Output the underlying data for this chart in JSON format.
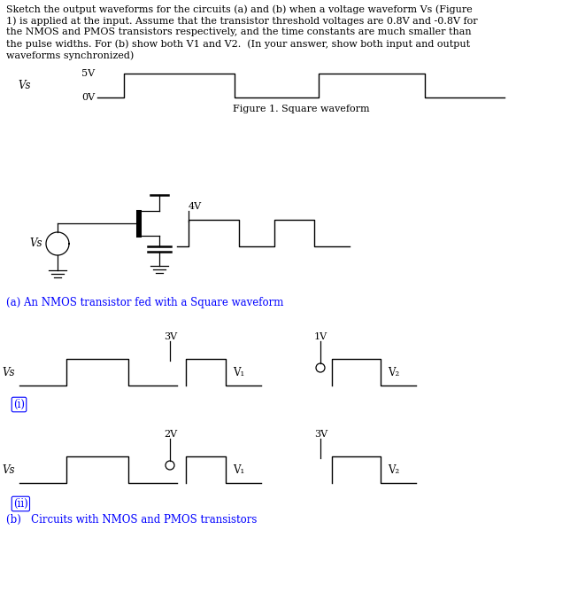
{
  "blue_color": "#0000FF",
  "black_color": "#000000",
  "bg_color": "#FFFFFF",
  "fs_body": 8.5,
  "fs_small": 8.0,
  "title_lines": [
    "Sketch the output waveforms for the circuits (a) and (b) when a voltage waveform Vs (Figure",
    "1) is applied at the input. Assume that the transistor threshold voltages are 0.8V and -0.8V for",
    "the NMOS and PMOS transistors respectively, and the time constants are much smaller than",
    "the pulse widths. For (b) show both V1 and V2.  (In your answer, show both input and output",
    "waveforms synchronized)"
  ],
  "vs_waveform": {
    "label_5v": "5V",
    "label_0v": "0V",
    "caption": "Figure 1. Square waveform",
    "vs_label": "Vs"
  },
  "circuit_a_label": "(a) An NMOS transistor fed with a Square waveform",
  "label_4v": "4V",
  "waveform_i": {
    "label_vs": "Vs",
    "label_v1": "V1",
    "label_v2": "V2",
    "label_3v": "3V",
    "label_1v": "1V",
    "index_label": "(i)"
  },
  "waveform_ii": {
    "label_vs": "Vs",
    "label_v1": "V1",
    "label_v2": "V2",
    "label_2v": "2V",
    "label_3v": "3V",
    "index_label": "(ii)"
  },
  "label_b": "(b)   Circuits with NMOS and PMOS transistors"
}
